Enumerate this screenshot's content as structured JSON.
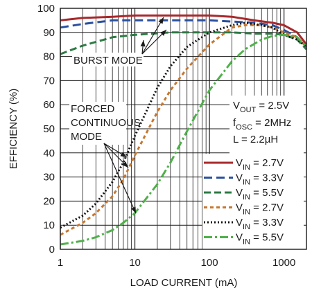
{
  "chart_data": {
    "type": "line",
    "xlabel": "LOAD CURRENT (mA)",
    "ylabel": "EFFICIENCY (%)",
    "x_scale": "log",
    "xlim": [
      1,
      2000
    ],
    "ylim": [
      0,
      100
    ],
    "x_ticks": [
      1,
      10,
      100,
      1000
    ],
    "x_tick_labels": [
      "1",
      "10",
      "100",
      "1000"
    ],
    "y_ticks": [
      0,
      10,
      20,
      30,
      40,
      50,
      60,
      70,
      80,
      90,
      100
    ],
    "y_tick_labels": [
      "0",
      "10",
      "20",
      "30",
      "40",
      "50",
      "60",
      "70",
      "80",
      "90",
      "100"
    ],
    "grid": true,
    "conditions": [
      {
        "main": "V",
        "sub": "OUT",
        "rest": " = 2.5V"
      },
      {
        "main": "f",
        "sub": "OSC",
        "rest": " = 2MHz"
      },
      {
        "main": "L = 2.2µH",
        "sub": "",
        "rest": ""
      }
    ],
    "annotations": {
      "burst": "BURST MODE",
      "forced": [
        "FORCED",
        "CONTINUOUS",
        "MODE"
      ]
    },
    "legend_position": "bottom-right",
    "series": [
      {
        "name_main": "V",
        "name_sub": "IN",
        "name_rest": " = 2.7V",
        "group": "Burst Mode",
        "color": "#a8292b",
        "dash": "",
        "width": 3,
        "x": [
          1,
          2,
          5,
          10,
          30,
          100,
          200,
          400,
          700,
          1000,
          1500,
          2000
        ],
        "y": [
          95,
          96,
          96.5,
          97,
          97,
          97,
          96.5,
          95,
          94,
          93,
          90,
          85
        ]
      },
      {
        "name_main": "V",
        "name_sub": "IN",
        "name_rest": " = 3.3V",
        "group": "Burst Mode",
        "color": "#2a4f9e",
        "dash": "12,6",
        "width": 3,
        "x": [
          1,
          2,
          5,
          10,
          30,
          100,
          200,
          400,
          700,
          1000,
          1500,
          2000
        ],
        "y": [
          92,
          93.5,
          95,
          95,
          95,
          95,
          94.5,
          94,
          93,
          91,
          88,
          84
        ]
      },
      {
        "name_main": "V",
        "name_sub": "IN",
        "name_rest": " = 5.5V",
        "group": "Burst Mode",
        "color": "#2e7a45",
        "dash": "10,5",
        "width": 3,
        "x": [
          1,
          2,
          5,
          10,
          30,
          100,
          200,
          400,
          700,
          1000,
          1500,
          2000
        ],
        "y": [
          81,
          84.5,
          88,
          89,
          90,
          90,
          90,
          89.5,
          89.5,
          89,
          87,
          83
        ]
      },
      {
        "name_main": "V",
        "name_sub": "IN",
        "name_rest": " = 2.7V",
        "group": "Forced Continuous Mode",
        "color": "#c8772e",
        "dash": "5,4",
        "width": 3,
        "x": [
          1,
          2,
          3,
          5,
          7,
          10,
          20,
          30,
          50,
          100,
          200,
          300,
          500,
          700,
          1000,
          1500,
          2000
        ],
        "y": [
          6,
          11,
          15,
          22,
          29,
          39,
          57,
          66,
          75,
          85,
          92,
          93,
          93,
          92,
          90,
          88,
          84
        ]
      },
      {
        "name_main": "V",
        "name_sub": "IN",
        "name_rest": " = 3.3V",
        "group": "Forced Continuous Mode",
        "color": "#111111",
        "dash": "2,3",
        "width": 3,
        "x": [
          1,
          2,
          3,
          5,
          7,
          10,
          20,
          30,
          50,
          100,
          200,
          300,
          500,
          700,
          1000,
          1500,
          2000
        ],
        "y": [
          9,
          14,
          19,
          28,
          36,
          47,
          67,
          76,
          84,
          90,
          93,
          94,
          93,
          92,
          89,
          87,
          84
        ]
      },
      {
        "name_main": "V",
        "name_sub": "IN",
        "name_rest": " = 5.5V",
        "group": "Forced Continuous Mode",
        "color": "#4fb04a",
        "dash": "12,4,3,4",
        "width": 3,
        "x": [
          1,
          2,
          3,
          5,
          7,
          10,
          20,
          30,
          50,
          100,
          200,
          300,
          500,
          700,
          1000,
          1500,
          2000
        ],
        "y": [
          2,
          3.5,
          5,
          8,
          11,
          15,
          27,
          36,
          49,
          66,
          78,
          83,
          87,
          88.5,
          89,
          88,
          84
        ]
      }
    ]
  }
}
